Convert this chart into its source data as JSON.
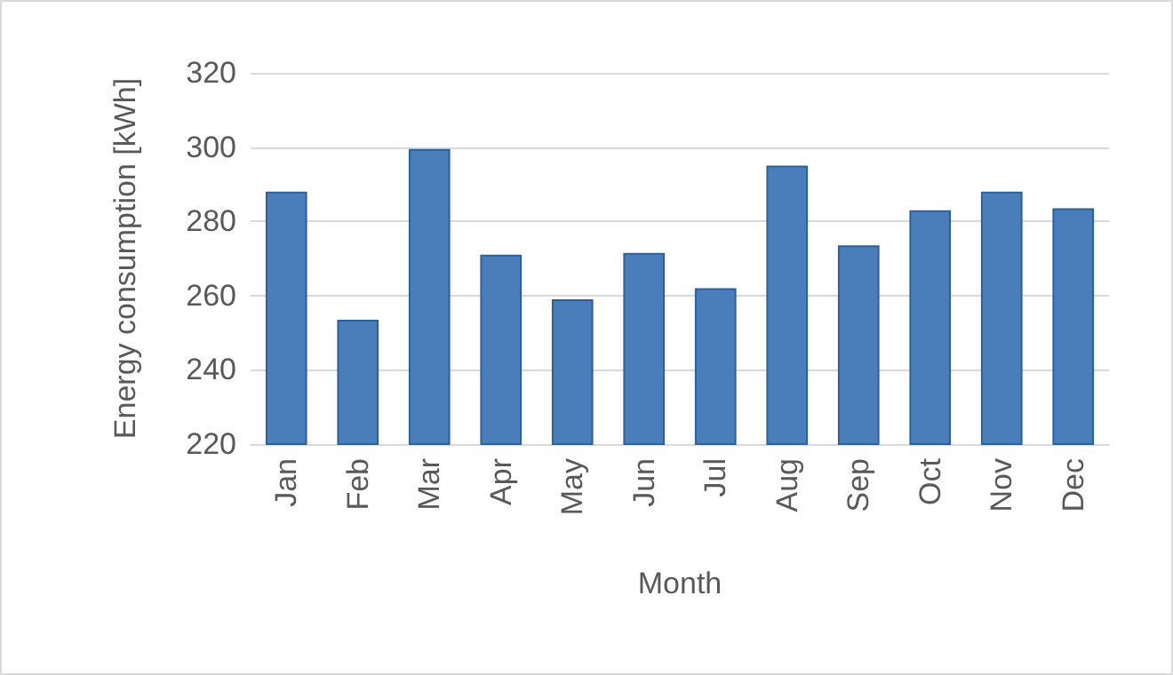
{
  "chart_data": {
    "type": "bar",
    "xlabel": "Month",
    "ylabel": "Energy consumption [kWh]",
    "categories": [
      "Jan",
      "Feb",
      "Mar",
      "Apr",
      "May",
      "Jun",
      "Jul",
      "Aug",
      "Sep",
      "Oct",
      "Nov",
      "Dec"
    ],
    "values": [
      288,
      253.5,
      299.5,
      271,
      259,
      271.5,
      262,
      295,
      273.5,
      283,
      288,
      283.5
    ],
    "color": "#4a7ebb",
    "ylim": [
      220,
      320
    ],
    "yticks": [
      220,
      240,
      260,
      280,
      300,
      320
    ],
    "grid": "y"
  }
}
